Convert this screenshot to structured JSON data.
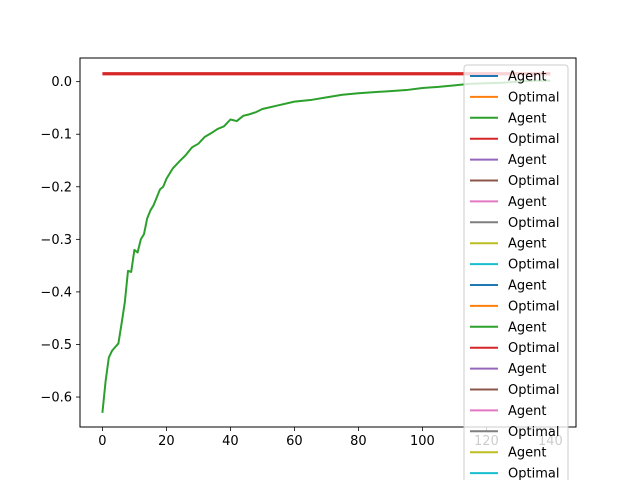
{
  "chart_data": {
    "type": "line",
    "title": "",
    "xlabel": "",
    "ylabel": "",
    "xlim": [
      -7,
      148
    ],
    "ylim": [
      -0.657,
      0.045
    ],
    "grid": false,
    "legend_placement": "right",
    "x_ticks": [
      0,
      20,
      40,
      60,
      80,
      100,
      120,
      140
    ],
    "x_tick_labels": [
      "0",
      "20",
      "40",
      "60",
      "80",
      "100",
      "120",
      "140"
    ],
    "y_ticks": [
      0.0,
      -0.1,
      -0.2,
      -0.3,
      -0.4,
      -0.5,
      -0.6
    ],
    "y_tick_labels": [
      "0.0",
      "−0.1",
      "−0.2",
      "−0.3",
      "−0.4",
      "−0.5",
      "−0.6"
    ],
    "series": [
      {
        "name": "Optimal",
        "color": "#d62728",
        "x": [
          0,
          140
        ],
        "y": [
          0.015,
          0.015
        ]
      },
      {
        "name": "Agent",
        "color": "#2ca02c",
        "x": [
          0,
          1,
          2,
          3,
          4,
          5,
          6,
          7,
          8,
          9,
          10,
          11,
          12,
          13,
          14,
          15,
          16,
          17,
          18,
          19,
          20,
          22,
          24,
          26,
          28,
          30,
          32,
          34,
          36,
          38,
          40,
          42,
          44,
          46,
          48,
          50,
          55,
          60,
          65,
          70,
          75,
          80,
          85,
          90,
          95,
          100,
          105,
          110,
          115,
          120,
          125,
          130,
          135,
          140
        ],
        "y": [
          -0.63,
          -0.57,
          -0.525,
          -0.512,
          -0.505,
          -0.498,
          -0.46,
          -0.42,
          -0.36,
          -0.362,
          -0.32,
          -0.325,
          -0.3,
          -0.29,
          -0.26,
          -0.245,
          -0.235,
          -0.22,
          -0.205,
          -0.2,
          -0.185,
          -0.165,
          -0.152,
          -0.14,
          -0.125,
          -0.118,
          -0.105,
          -0.098,
          -0.09,
          -0.085,
          -0.072,
          -0.075,
          -0.065,
          -0.062,
          -0.058,
          -0.052,
          -0.045,
          -0.038,
          -0.035,
          -0.03,
          -0.025,
          -0.022,
          -0.02,
          -0.018,
          -0.016,
          -0.012,
          -0.01,
          -0.007,
          -0.004,
          -0.003,
          -0.002,
          0.0,
          0.002,
          0.002
        ]
      }
    ]
  },
  "legend": {
    "entries": [
      {
        "label": "Agent",
        "color": "#1f77b4"
      },
      {
        "label": "Optimal",
        "color": "#ff7f0e"
      },
      {
        "label": "Agent",
        "color": "#2ca02c"
      },
      {
        "label": "Optimal",
        "color": "#d62728"
      },
      {
        "label": "Agent",
        "color": "#9467bd"
      },
      {
        "label": "Optimal",
        "color": "#8c564b"
      },
      {
        "label": "Agent",
        "color": "#e377c2"
      },
      {
        "label": "Optimal",
        "color": "#7f7f7f"
      },
      {
        "label": "Agent",
        "color": "#bcbd22"
      },
      {
        "label": "Optimal",
        "color": "#17becf"
      },
      {
        "label": "Agent",
        "color": "#1f77b4"
      },
      {
        "label": "Optimal",
        "color": "#ff7f0e"
      },
      {
        "label": "Agent",
        "color": "#2ca02c"
      },
      {
        "label": "Optimal",
        "color": "#d62728"
      },
      {
        "label": "Agent",
        "color": "#9467bd"
      },
      {
        "label": "Optimal",
        "color": "#8c564b"
      },
      {
        "label": "Agent",
        "color": "#e377c2"
      },
      {
        "label": "Optimal",
        "color": "#7f7f7f"
      },
      {
        "label": "Agent",
        "color": "#bcbd22"
      },
      {
        "label": "Optimal",
        "color": "#17becf"
      }
    ]
  }
}
